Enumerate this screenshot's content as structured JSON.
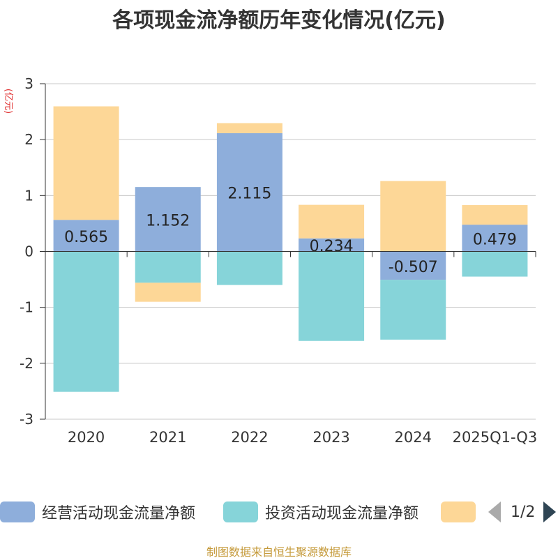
{
  "chart_data": {
    "type": "bar",
    "stacked": true,
    "title": "各项现金流净额历年变化情况(亿元)",
    "ylabel": "(亿元)",
    "ylim": [
      -3,
      3
    ],
    "yticks": [
      3,
      2,
      1,
      0,
      -1,
      -2,
      -3
    ],
    "categories": [
      "2020",
      "2021",
      "2022",
      "2023",
      "2024",
      "2025Q1-Q3"
    ],
    "series": [
      {
        "name": "经营活动现金流量净额",
        "color": "#8eaedb",
        "values": [
          0.565,
          1.152,
          2.115,
          0.234,
          -0.507,
          0.479
        ],
        "labels": [
          "0.565",
          "1.152",
          "2.115",
          "0.234",
          "-0.507",
          "0.479"
        ]
      },
      {
        "name": "投资活动现金流量净额",
        "color": "#86d4d9",
        "values": [
          -2.51,
          -0.56,
          -0.6,
          -1.6,
          -1.07,
          -0.45
        ]
      },
      {
        "name": "",
        "color": "#fdd797",
        "values": [
          2.03,
          -0.34,
          0.18,
          0.6,
          1.26,
          0.35
        ]
      }
    ]
  },
  "legend": {
    "items": [
      {
        "label": "经营活动现金流量净额",
        "color": "#8eaedb"
      },
      {
        "label": "投资活动现金流量净额",
        "color": "#86d4d9"
      },
      {
        "label": "",
        "color": "#fdd797"
      }
    ],
    "page": "1/2"
  },
  "source": "制图数据来自恒生聚源数据库"
}
